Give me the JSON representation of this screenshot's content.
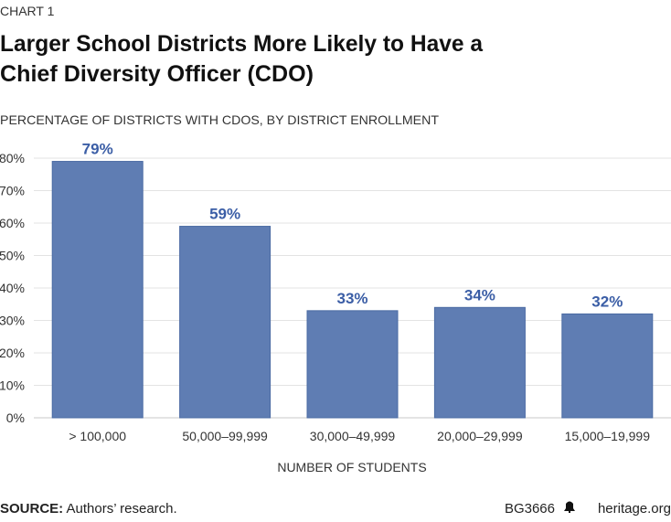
{
  "header": {
    "kicker": "CHART 1",
    "title_line1": "Larger School Districts More Likely to Have a",
    "title_line2": "Chief Diversity Officer (CDO)"
  },
  "footer": {
    "source_label": "SOURCE:",
    "source_text": " Authors’ research.",
    "report_id": "BG3666",
    "site": "heritage.org",
    "logo_icon": "liberty-bell-icon"
  },
  "colors": {
    "bar": "#5f7db3",
    "bar_stroke": "#4a6aa3",
    "data_label": "#3b5ea6",
    "grid": "#e3e3e3",
    "text": "#333333"
  },
  "chart_data": {
    "type": "bar",
    "title": "PERCENTAGE OF DISTRICTS WITH CDOS, BY DISTRICT ENROLLMENT",
    "xlabel": "NUMBER OF STUDENTS",
    "ylabel": "",
    "categories": [
      "> 100,000",
      "50,000–99,999",
      "30,000–49,999",
      "20,000–29,999",
      "15,000–19,999"
    ],
    "values": [
      79,
      59,
      33,
      34,
      32
    ],
    "data_labels": [
      "79%",
      "59%",
      "33%",
      "34%",
      "32%"
    ],
    "ylim": [
      0,
      80
    ],
    "yticks": [
      0,
      10,
      20,
      30,
      40,
      50,
      60,
      70,
      80
    ],
    "ytick_labels": [
      "0%",
      "10%",
      "20%",
      "30%",
      "40%",
      "50%",
      "60%",
      "70%",
      "80%"
    ],
    "grid": true,
    "legend": "none"
  }
}
